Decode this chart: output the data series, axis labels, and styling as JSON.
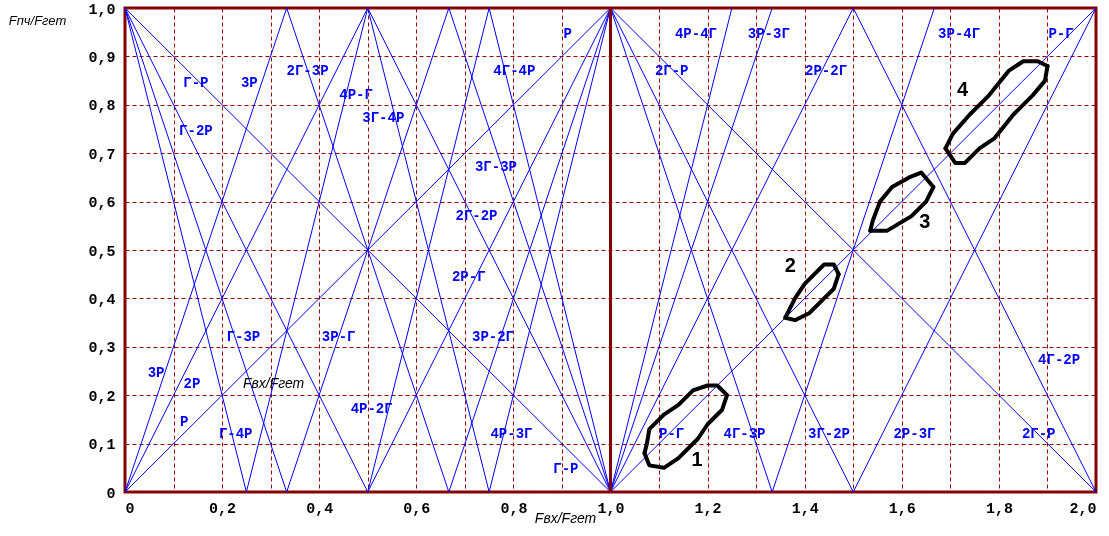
{
  "chart_data": {
    "type": "line",
    "xlabel": "Fвх/Fгет",
    "ylabel": "Fпч/Fгет",
    "xlim": [
      0,
      2
    ],
    "ylim": [
      0,
      1
    ],
    "grid": true,
    "xticks": [
      0,
      {
        "value": 0.1,
        "label": null
      },
      {
        "value": 0.2,
        "label": "0,2"
      },
      {
        "value": 0.3,
        "label": null
      },
      {
        "value": 0.4,
        "label": "0,4"
      },
      {
        "value": 0.5,
        "label": null
      },
      {
        "value": 0.6,
        "label": "0,6"
      },
      {
        "value": 0.7,
        "label": null
      },
      {
        "value": 0.8,
        "label": "0,8"
      },
      {
        "value": 0.9,
        "label": null
      },
      {
        "value": 1,
        "label": "1,0"
      },
      {
        "value": 1.1,
        "label": null
      },
      {
        "value": 1.2,
        "label": "1,2"
      },
      {
        "value": 1.3,
        "label": null
      },
      {
        "value": 1.4,
        "label": "1,4"
      },
      {
        "value": 1.5,
        "label": null
      },
      {
        "value": 1.6,
        "label": "1,6"
      },
      {
        "value": 1.7,
        "label": null
      },
      {
        "value": 1.8,
        "label": "1,8"
      },
      {
        "value": 1.9,
        "label": null
      },
      {
        "value": 2,
        "label": "2,0"
      }
    ],
    "yticks": [
      0,
      {
        "value": 0.1,
        "label": "0,1"
      },
      {
        "value": 0.2,
        "label": "0,2"
      },
      {
        "value": 0.3,
        "label": "0,3"
      },
      {
        "value": 0.4,
        "label": "0,4"
      },
      {
        "value": 0.5,
        "label": "0,5"
      },
      {
        "value": 0.6,
        "label": "0,6"
      },
      {
        "value": 0.7,
        "label": "0,7"
      },
      {
        "value": 0.8,
        "label": "0,8"
      },
      {
        "value": 0.9,
        "label": "0,9"
      },
      {
        "value": 1,
        "label": "1,0"
      }
    ],
    "ref_lines": [
      {
        "axis": "x",
        "value": 1,
        "label": null,
        "color": "#800000"
      }
    ],
    "series": [
      {
        "color": "#0000ff",
        "x": [
          0,
          1
        ],
        "values": [
          0,
          1
        ]
      },
      {
        "color": "#0000ff",
        "x": [
          0,
          1
        ],
        "values": [
          1,
          0
        ]
      },
      {
        "color": "#0000ff",
        "x": [
          1,
          2
        ],
        "values": [
          1,
          0
        ]
      },
      {
        "color": "#0000ff",
        "x": [
          1,
          2
        ],
        "values": [
          0,
          1
        ]
      },
      {
        "color": "#0000ff",
        "x": [
          0,
          0.5
        ],
        "values": [
          0,
          1
        ]
      },
      {
        "color": "#0000ff",
        "x": [
          0,
          0.5
        ],
        "values": [
          1,
          0
        ]
      },
      {
        "color": "#0000ff",
        "x": [
          0.5,
          1
        ],
        "values": [
          0,
          1
        ]
      },
      {
        "color": "#0000ff",
        "x": [
          0.5,
          1
        ],
        "values": [
          1,
          0
        ]
      },
      {
        "color": "#0000ff",
        "x": [
          1,
          1.5
        ],
        "values": [
          0,
          1
        ]
      },
      {
        "color": "#0000ff",
        "x": [
          1,
          1.5
        ],
        "values": [
          1,
          0
        ]
      },
      {
        "color": "#0000ff",
        "x": [
          1.5,
          2
        ],
        "values": [
          0,
          1
        ]
      },
      {
        "color": "#0000ff",
        "x": [
          1.5,
          2
        ],
        "values": [
          1,
          0
        ]
      },
      {
        "color": "#0000ff",
        "x": [
          0,
          0.333
        ],
        "values": [
          0,
          1
        ]
      },
      {
        "color": "#0000ff",
        "x": [
          0,
          0.333
        ],
        "values": [
          1,
          0
        ]
      },
      {
        "color": "#0000ff",
        "x": [
          0.333,
          0.667
        ],
        "values": [
          0,
          1
        ]
      },
      {
        "color": "#0000ff",
        "x": [
          0.333,
          0.667
        ],
        "values": [
          1,
          0
        ]
      },
      {
        "color": "#0000ff",
        "x": [
          0.667,
          1
        ],
        "values": [
          0,
          1
        ]
      },
      {
        "color": "#0000ff",
        "x": [
          0.667,
          1
        ],
        "values": [
          1,
          0
        ]
      },
      {
        "color": "#0000ff",
        "x": [
          1,
          1.333
        ],
        "values": [
          0,
          1
        ]
      },
      {
        "color": "#0000ff",
        "x": [
          1,
          1.333
        ],
        "values": [
          1,
          0
        ]
      },
      {
        "color": "#0000ff",
        "x": [
          1.333,
          1.667
        ],
        "values": [
          0,
          1
        ]
      },
      {
        "color": "#0000ff",
        "x": [
          0,
          0.25
        ],
        "values": [
          1,
          0
        ]
      },
      {
        "color": "#0000ff",
        "x": [
          0.25,
          0.5
        ],
        "values": [
          0,
          1
        ]
      },
      {
        "color": "#0000ff",
        "x": [
          0.5,
          0.75
        ],
        "values": [
          0,
          1
        ]
      },
      {
        "color": "#0000ff",
        "x": [
          0.5,
          0.75
        ],
        "values": [
          1,
          0
        ]
      },
      {
        "color": "#0000ff",
        "x": [
          0.75,
          1
        ],
        "values": [
          0,
          1
        ]
      },
      {
        "color": "#0000ff",
        "x": [
          0.75,
          1
        ],
        "values": [
          1,
          0
        ]
      },
      {
        "color": "#0000ff",
        "x": [
          1,
          1.25
        ],
        "values": [
          0,
          1
        ]
      },
      {
        "color": "#000000",
        "x": [
          1.07,
          1.08,
          1.11,
          1.14,
          1.18,
          1.2,
          1.23,
          1.24
        ],
        "values": [
          0.08,
          0.055,
          0.05,
          0.07,
          0.11,
          0.14,
          0.17,
          0.2
        ]
      },
      {
        "name": "1",
        "color": "#000000",
        "x": [
          1.07,
          1.075,
          1.08,
          1.11,
          1.14,
          1.17,
          1.2,
          1.22,
          1.24
        ],
        "values": [
          0.08,
          0.1,
          0.13,
          0.16,
          0.18,
          0.21,
          0.22,
          0.22,
          0.2
        ]
      },
      {
        "color": "#000000",
        "x": [
          1.36,
          1.38,
          1.41,
          1.44,
          1.46,
          1.47
        ],
        "values": [
          0.36,
          0.355,
          0.37,
          0.4,
          0.42,
          0.45
        ]
      },
      {
        "name": "2",
        "color": "#000000",
        "x": [
          1.36,
          1.365,
          1.38,
          1.4,
          1.42,
          1.44,
          1.46,
          1.47
        ],
        "values": [
          0.36,
          0.37,
          0.4,
          0.43,
          0.45,
          0.47,
          0.47,
          0.45
        ]
      },
      {
        "color": "#000000",
        "x": [
          1.535,
          1.57,
          1.62,
          1.65,
          1.665
        ],
        "values": [
          0.54,
          0.54,
          0.57,
          0.6,
          0.63
        ]
      },
      {
        "name": "3",
        "color": "#000000",
        "x": [
          1.535,
          1.54,
          1.555,
          1.58,
          1.615,
          1.64,
          1.665
        ],
        "values": [
          0.54,
          0.56,
          0.6,
          0.63,
          0.65,
          0.66,
          0.63
        ]
      },
      {
        "color": "#000000",
        "x": [
          1.69,
          1.71,
          1.73,
          1.76,
          1.79,
          1.83,
          1.87,
          1.895,
          1.9
        ],
        "values": [
          0.71,
          0.68,
          0.68,
          0.71,
          0.73,
          0.78,
          0.82,
          0.85,
          0.88
        ]
      },
      {
        "name": "4",
        "color": "#000000",
        "x": [
          1.69,
          1.705,
          1.74,
          1.78,
          1.82,
          1.85,
          1.88,
          1.9
        ],
        "values": [
          0.71,
          0.74,
          0.78,
          0.82,
          0.87,
          0.89,
          0.89,
          0.88
        ]
      }
    ],
    "annotations": [
      "Г-Р",
      "3Р",
      "2Г-3Р",
      "4Р-Г",
      "3Г-4Р",
      "Г-2Р",
      "4Г-4Р",
      "Р",
      "3Г-3Р",
      "2Г-2Р",
      "2Р-Г",
      "3Р-2Г",
      "Г-3Р",
      "3Р-Г",
      "3Р",
      "2Р",
      "Fвх/Fгет",
      "Р",
      "Г-4Р",
      "4Р-2Г",
      "4Р-3Г",
      "Г-Р",
      "4Р-4Г",
      "3Р-3Г",
      "3Р-4Г",
      "Р-Г",
      "2Г-Р",
      "2Р-2Г",
      "4Г-2Р",
      "Р-Г",
      "4Г-3Р",
      "3Г-2Р",
      "2Р-3Г",
      "2Г-Р"
    ]
  }
}
